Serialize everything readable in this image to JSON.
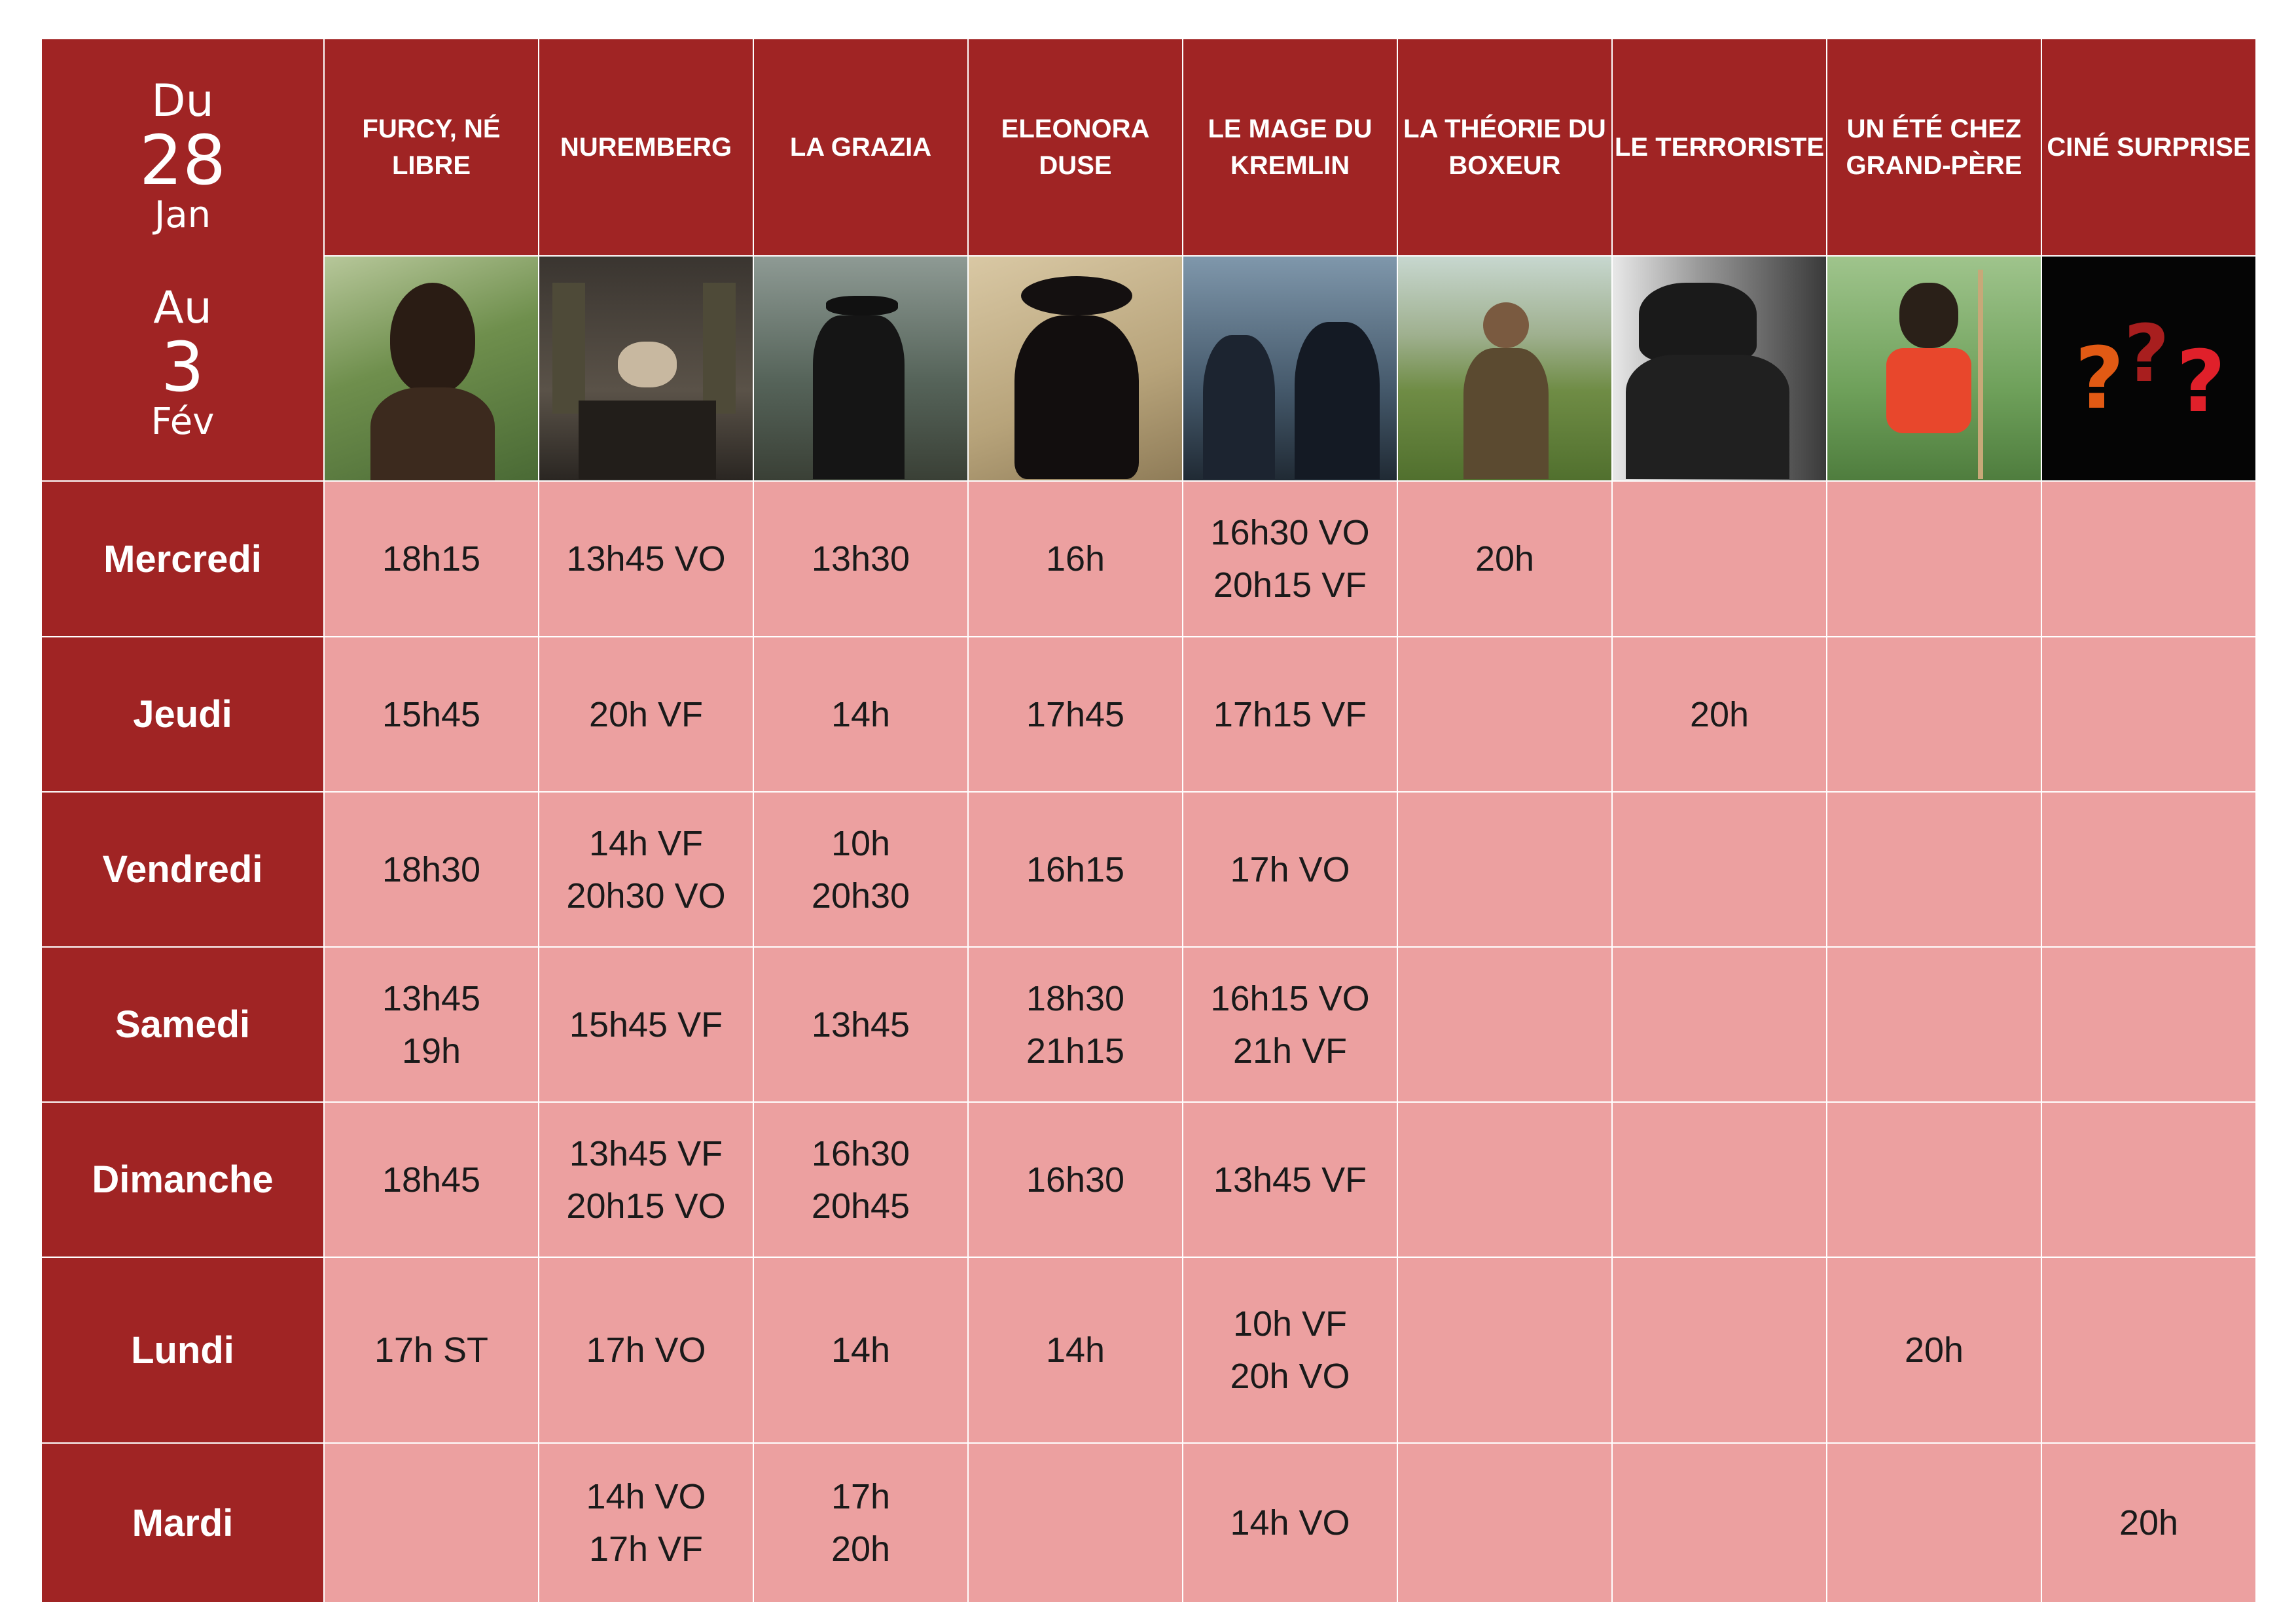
{
  "period": {
    "from_word": "Du",
    "from_day": "28",
    "from_month": "Jan",
    "to_word": "Au",
    "to_day": "3",
    "to_month": "Fév"
  },
  "films": [
    {
      "title": "FURCY, NÉ LIBRE",
      "icon": "man-in-grass-photo"
    },
    {
      "title": "NUREMBERG",
      "icon": "courtroom-photo"
    },
    {
      "title": "LA GRAZIA",
      "icon": "man-walking-road-photo"
    },
    {
      "title": "ELEONORA DUSE",
      "icon": "woman-in-hat-photo"
    },
    {
      "title": "LE MAGE DU KREMLIN",
      "icon": "men-in-suits-photo"
    },
    {
      "title": "LA THÉORIE DU BOXEUR",
      "icon": "man-in-field-photo"
    },
    {
      "title": "LE TERRORISTE",
      "icon": "man-with-rifle-photo"
    },
    {
      "title": "UN ÉTÉ CHEZ GRAND-PÈRE",
      "icon": "boy-in-field-photo"
    },
    {
      "title": "CINÉ SURPRISE",
      "icon": "question-marks-icon"
    }
  ],
  "days": [
    {
      "name": "Mercredi",
      "slots": [
        [
          "18h15"
        ],
        [
          "13h45 VO"
        ],
        [
          "13h30"
        ],
        [
          "16h"
        ],
        [
          "16h30 VO",
          "20h15 VF"
        ],
        [
          "20h"
        ],
        [],
        [],
        []
      ]
    },
    {
      "name": "Jeudi",
      "slots": [
        [
          "15h45"
        ],
        [
          "20h VF"
        ],
        [
          "14h"
        ],
        [
          "17h45"
        ],
        [
          "17h15 VF"
        ],
        [],
        [
          "20h"
        ],
        [],
        []
      ]
    },
    {
      "name": "Vendredi",
      "slots": [
        [
          "18h30"
        ],
        [
          "14h VF",
          "20h30 VO"
        ],
        [
          "10h",
          "20h30"
        ],
        [
          "16h15"
        ],
        [
          "17h VO"
        ],
        [],
        [],
        [],
        []
      ]
    },
    {
      "name": "Samedi",
      "slots": [
        [
          "13h45",
          "19h"
        ],
        [
          "15h45 VF"
        ],
        [
          "13h45"
        ],
        [
          "18h30",
          "21h15"
        ],
        [
          "16h15 VO",
          "21h VF"
        ],
        [],
        [],
        [],
        []
      ]
    },
    {
      "name": "Dimanche",
      "slots": [
        [
          "18h45"
        ],
        [
          "13h45 VF",
          "20h15 VO"
        ],
        [
          "16h30",
          "20h45"
        ],
        [
          "16h30"
        ],
        [
          "13h45 VF"
        ],
        [],
        [],
        [],
        []
      ]
    },
    {
      "name": "Lundi",
      "slots": [
        [
          "17h ST"
        ],
        [
          "17h VO"
        ],
        [
          "14h"
        ],
        [
          "14h"
        ],
        [
          "10h VF",
          "20h VO"
        ],
        [],
        [],
        [
          "20h"
        ],
        []
      ]
    },
    {
      "name": "Mardi",
      "slots": [
        [],
        [
          "14h VO",
          "17h VF"
        ],
        [
          "17h",
          "20h"
        ],
        [],
        [
          "14h VO"
        ],
        [],
        [],
        [],
        [
          "20h"
        ]
      ]
    }
  ],
  "colors": {
    "header_red": "#a02424",
    "cell_pink": "#eca0a0"
  }
}
